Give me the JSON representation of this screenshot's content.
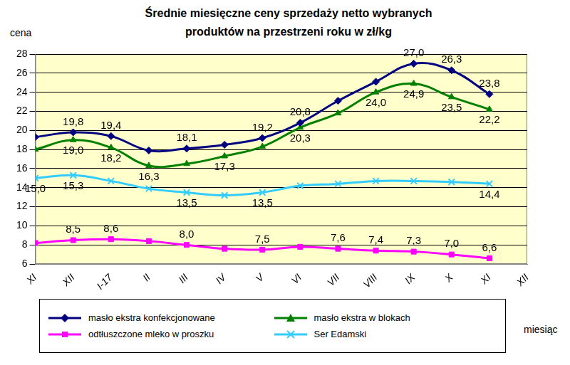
{
  "chart_data": {
    "type": "line",
    "title": "Średnie miesięczne ceny sprzedaży netto  wybranych produktów na przestrzeni roku w zł/kg",
    "y_label": "cena",
    "x_label": "miesiąc",
    "categories": [
      "XI",
      "XII",
      "I-17",
      "II",
      "III",
      "IV",
      "V",
      "VI",
      "VII",
      "VIII",
      "IX",
      "X",
      "XI",
      "XII"
    ],
    "ylim": [
      6,
      28
    ],
    "yticks": [
      6,
      8,
      10,
      12,
      14,
      16,
      18,
      20,
      22,
      24,
      26,
      28
    ],
    "grid": true,
    "legend": "bottom",
    "data_labels": true,
    "series": [
      {
        "name": "masło ekstra konfekcjonowane",
        "color": "#000080",
        "marker": "diamond",
        "line_style": "solid",
        "values": [
          19.3,
          19.8,
          19.4,
          17.9,
          18.1,
          18.5,
          19.2,
          20.8,
          23.1,
          25.1,
          27.0,
          26.3,
          23.8,
          null
        ],
        "value_labels": [
          null,
          "19,8",
          "19,4",
          null,
          "18,1",
          null,
          "19,2",
          "20,8",
          null,
          null,
          "27,0",
          "26,3",
          "23,8",
          null
        ]
      },
      {
        "name": "masło ekstra w blokach",
        "color": "#008000",
        "marker": "triangle",
        "line_style": "solid",
        "values": [
          18.0,
          19.0,
          18.2,
          16.3,
          16.5,
          17.3,
          18.3,
          20.3,
          21.8,
          24.0,
          24.9,
          23.5,
          22.2,
          null
        ],
        "value_labels": [
          null,
          "19,0",
          "18,2",
          "16,3",
          null,
          "17,3",
          null,
          "20,3",
          null,
          "24,0",
          "24,9",
          "23,5",
          "22,2",
          null
        ]
      },
      {
        "name": "odtłuszczone mleko w proszku",
        "color": "#ff00ff",
        "marker": "square",
        "line_style": "solid",
        "values": [
          8.2,
          8.5,
          8.6,
          8.4,
          8.0,
          7.6,
          7.5,
          7.8,
          7.6,
          7.4,
          7.3,
          7.0,
          6.6,
          null
        ],
        "value_labels": [
          null,
          "8,5",
          "8,6",
          null,
          "8,0",
          null,
          "7,5",
          null,
          "7,6",
          "7,4",
          "7,3",
          "7,0",
          "6,6",
          null
        ]
      },
      {
        "name": "Ser Edamski",
        "color": "#33ccff",
        "marker": "x",
        "line_style": "solid",
        "values": [
          15.0,
          15.3,
          14.7,
          13.9,
          13.5,
          13.2,
          13.5,
          14.2,
          14.4,
          14.7,
          14.7,
          14.6,
          14.4,
          null
        ],
        "value_labels": [
          "15,0",
          "15,3",
          null,
          null,
          "13,5",
          null,
          "13,5",
          null,
          null,
          null,
          null,
          null,
          "14,4",
          null
        ]
      }
    ]
  }
}
